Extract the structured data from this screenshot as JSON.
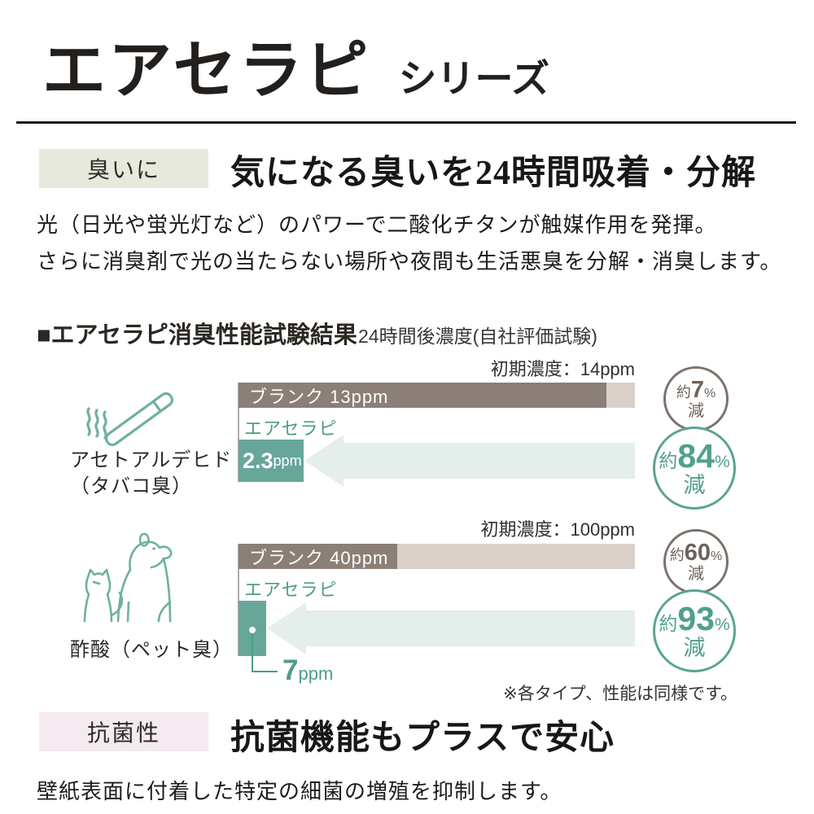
{
  "page": {
    "title": "エアセラピ",
    "title_suffix": "シリーズ"
  },
  "sections": {
    "deodorant": {
      "tag": "臭いに",
      "heading": "気になる臭いを24時間吸着・分解",
      "body_line1": "光（日光や蛍光灯など）のパワーで二酸化チタンが触媒作用を発揮。",
      "body_line2": "さらに消臭剤で光の当たらない場所や夜間も生活悪臭を分解・消臭します。"
    },
    "test": {
      "heading": "■エアセラピ消臭性能試験結果",
      "subheading": "24時間後濃度(自社評価試験)",
      "footnote": "※各タイプ、性能は同様です。"
    },
    "antibacterial": {
      "tag": "抗菌性",
      "heading": "抗菌機能もプラスで安心",
      "body": "壁紙表面に付着した特定の細菌の増殖を抑制します。"
    }
  },
  "charts": [
    {
      "odor_line1": "アセトアルデヒド",
      "odor_line2": "（タバコ臭）",
      "icon": "cigarette-icon",
      "initial_label": "初期濃度：14ppm",
      "blank_label": "ブランク 13ppm",
      "product_label": "エアセラピ",
      "product_value": "2.3",
      "product_unit": "ppm",
      "reduction_blank": {
        "prefix": "約",
        "value": "7",
        "percent": "%",
        "suffix": "減"
      },
      "reduction_product": {
        "prefix": "約",
        "value": "84",
        "percent": "%",
        "suffix": "減"
      }
    },
    {
      "odor_line1": "酢酸（ペット臭）",
      "icon": "pets-icon",
      "initial_label": "初期濃度：100ppm",
      "blank_label": "ブランク 40ppm",
      "product_label": "エアセラピ",
      "product_value": "7",
      "product_unit": "ppm",
      "reduction_blank": {
        "prefix": "約",
        "value": "60",
        "percent": "%",
        "suffix": "減"
      },
      "reduction_product": {
        "prefix": "約",
        "value": "93",
        "percent": "%",
        "suffix": "減"
      }
    }
  ],
  "chart_data": [
    {
      "type": "bar",
      "title": "アセトアルデヒド（タバコ臭）",
      "subtitle": "初期濃度：14ppm",
      "xlabel": "",
      "ylabel": "",
      "unit": "ppm",
      "initial_ppm": 14,
      "xlim": [
        0,
        14
      ],
      "categories": [
        "ブランク",
        "エアセラピ"
      ],
      "series": [
        {
          "name": "ブランク",
          "value_ppm": 13,
          "reduction_pct": 7
        },
        {
          "name": "エアセラピ",
          "value_ppm": 2.3,
          "reduction_pct": 84
        }
      ]
    },
    {
      "type": "bar",
      "title": "酢酸（ペット臭）",
      "subtitle": "初期濃度：100ppm",
      "xlabel": "",
      "ylabel": "",
      "unit": "ppm",
      "initial_ppm": 100,
      "xlim": [
        0,
        100
      ],
      "categories": [
        "ブランク",
        "エアセラピ"
      ],
      "series": [
        {
          "name": "ブランク",
          "value_ppm": 40,
          "reduction_pct": 60
        },
        {
          "name": "エアセラピ",
          "value_ppm": 7,
          "reduction_pct": 93
        }
      ]
    }
  ],
  "colors": {
    "bar_blank_dark": "#8b7f77",
    "bar_blank_tail": "#d8d0c9",
    "bar_product_teal": "#67a79a",
    "arrow_fill": "#e4eeeb",
    "accent_teal": "#5ba393",
    "circle_gray": "#7d726b",
    "tag_deodorant_bg": "#e7e9dd",
    "tag_antibacterial_bg": "#f5eaf0"
  }
}
